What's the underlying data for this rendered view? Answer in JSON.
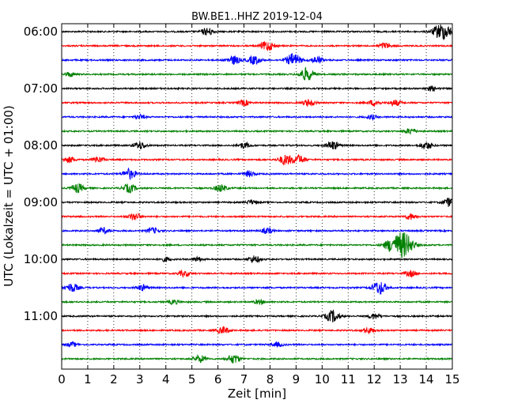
{
  "chart_data": {
    "type": "line",
    "title": "BW.BE1..HHZ 2019-12-04",
    "xlabel": "Zeit  [min]",
    "ylabel": "UTC (Lokalzeit = UTC + 01:00)",
    "xlim": [
      0,
      15
    ],
    "x_ticks": [
      0,
      1,
      2,
      3,
      4,
      5,
      6,
      7,
      8,
      9,
      10,
      11,
      12,
      13,
      14,
      15
    ],
    "y_tick_labels": [
      "06:00",
      "07:00",
      "08:00",
      "09:00",
      "10:00",
      "11:00"
    ],
    "y_ticks_trace_index": [
      0,
      4,
      8,
      12,
      16,
      20
    ],
    "grid": "vertical dotted",
    "trace_colors": [
      "#000000",
      "#ff0000",
      "#0000ff",
      "#008000"
    ],
    "traces": [
      {
        "start": "06:00",
        "events": [
          [
            5.6,
            0.5
          ],
          [
            14.5,
            0.9
          ],
          [
            14.8,
            0.6
          ]
        ]
      },
      {
        "start": "06:15",
        "events": [
          [
            7.9,
            0.7
          ],
          [
            12.4,
            0.4
          ]
        ]
      },
      {
        "start": "06:30",
        "events": [
          [
            6.6,
            0.6
          ],
          [
            7.4,
            0.6
          ],
          [
            8.9,
            0.9
          ],
          [
            9.8,
            0.5
          ]
        ]
      },
      {
        "start": "06:45",
        "events": [
          [
            9.4,
            0.9
          ],
          [
            0.3,
            0.3
          ]
        ]
      },
      {
        "start": "07:00",
        "events": [
          [
            14.2,
            0.3
          ]
        ]
      },
      {
        "start": "07:15",
        "events": [
          [
            7.0,
            0.4
          ],
          [
            9.5,
            0.5
          ],
          [
            12.0,
            0.4
          ],
          [
            12.8,
            0.4
          ]
        ]
      },
      {
        "start": "07:30",
        "events": [
          [
            3.0,
            0.3
          ],
          [
            11.9,
            0.3
          ]
        ]
      },
      {
        "start": "07:45",
        "events": [
          [
            13.4,
            0.4
          ]
        ]
      },
      {
        "start": "08:00",
        "events": [
          [
            3.0,
            0.5
          ],
          [
            7.0,
            0.4
          ],
          [
            10.4,
            0.6
          ],
          [
            14.0,
            0.5
          ]
        ]
      },
      {
        "start": "08:15",
        "events": [
          [
            0.3,
            0.4
          ],
          [
            1.4,
            0.4
          ],
          [
            8.6,
            0.7
          ],
          [
            9.1,
            0.6
          ]
        ]
      },
      {
        "start": "08:30",
        "events": [
          [
            2.6,
            0.7
          ],
          [
            7.2,
            0.4
          ]
        ]
      },
      {
        "start": "08:45",
        "events": [
          [
            0.6,
            0.6
          ],
          [
            2.6,
            0.6
          ],
          [
            6.1,
            0.5
          ]
        ]
      },
      {
        "start": "09:00",
        "events": [
          [
            14.9,
            0.6
          ],
          [
            7.3,
            0.3
          ]
        ]
      },
      {
        "start": "09:15",
        "events": [
          [
            2.8,
            0.5
          ],
          [
            13.4,
            0.4
          ]
        ]
      },
      {
        "start": "09:30",
        "events": [
          [
            1.6,
            0.4
          ],
          [
            3.5,
            0.4
          ],
          [
            7.9,
            0.4
          ]
        ]
      },
      {
        "start": "09:45",
        "events": [
          [
            13.1,
            1.8
          ],
          [
            12.6,
            0.6
          ]
        ]
      },
      {
        "start": "10:00",
        "events": [
          [
            7.4,
            0.5
          ],
          [
            4.0,
            0.3
          ],
          [
            5.2,
            0.3
          ]
        ]
      },
      {
        "start": "10:15",
        "events": [
          [
            4.7,
            0.4
          ],
          [
            13.4,
            0.4
          ]
        ]
      },
      {
        "start": "10:30",
        "events": [
          [
            0.4,
            0.6
          ],
          [
            3.1,
            0.4
          ],
          [
            12.2,
            0.9
          ]
        ]
      },
      {
        "start": "10:45",
        "events": [
          [
            4.3,
            0.3
          ],
          [
            7.6,
            0.3
          ]
        ]
      },
      {
        "start": "11:00",
        "events": [
          [
            10.4,
            0.8
          ],
          [
            12.0,
            0.4
          ]
        ]
      },
      {
        "start": "11:15",
        "events": [
          [
            6.2,
            0.5
          ],
          [
            11.8,
            0.4
          ]
        ]
      },
      {
        "start": "11:30",
        "events": [
          [
            0.4,
            0.3
          ],
          [
            8.3,
            0.3
          ]
        ]
      },
      {
        "start": "11:45",
        "events": [
          [
            5.3,
            0.5
          ],
          [
            6.6,
            0.6
          ]
        ]
      }
    ]
  }
}
